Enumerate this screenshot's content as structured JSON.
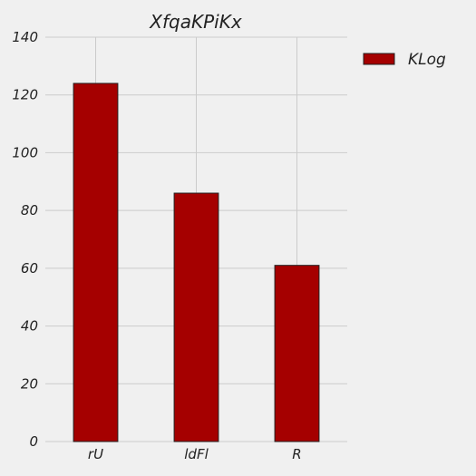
{
  "chart_data": {
    "type": "bar",
    "title": "XfqaKPiKx",
    "xlabel": "",
    "ylabel": "",
    "categories": [
      "rU",
      "ldFl",
      "R"
    ],
    "series": [
      {
        "name": "KLog",
        "values": [
          124,
          86,
          61
        ],
        "color": "#a50000"
      }
    ],
    "ylim": [
      0,
      140
    ],
    "yticks": [
      "0",
      "20",
      "40",
      "60",
      "80",
      "100",
      "120",
      "140"
    ],
    "grid": true,
    "legend_position": "top-right, outside plot"
  }
}
